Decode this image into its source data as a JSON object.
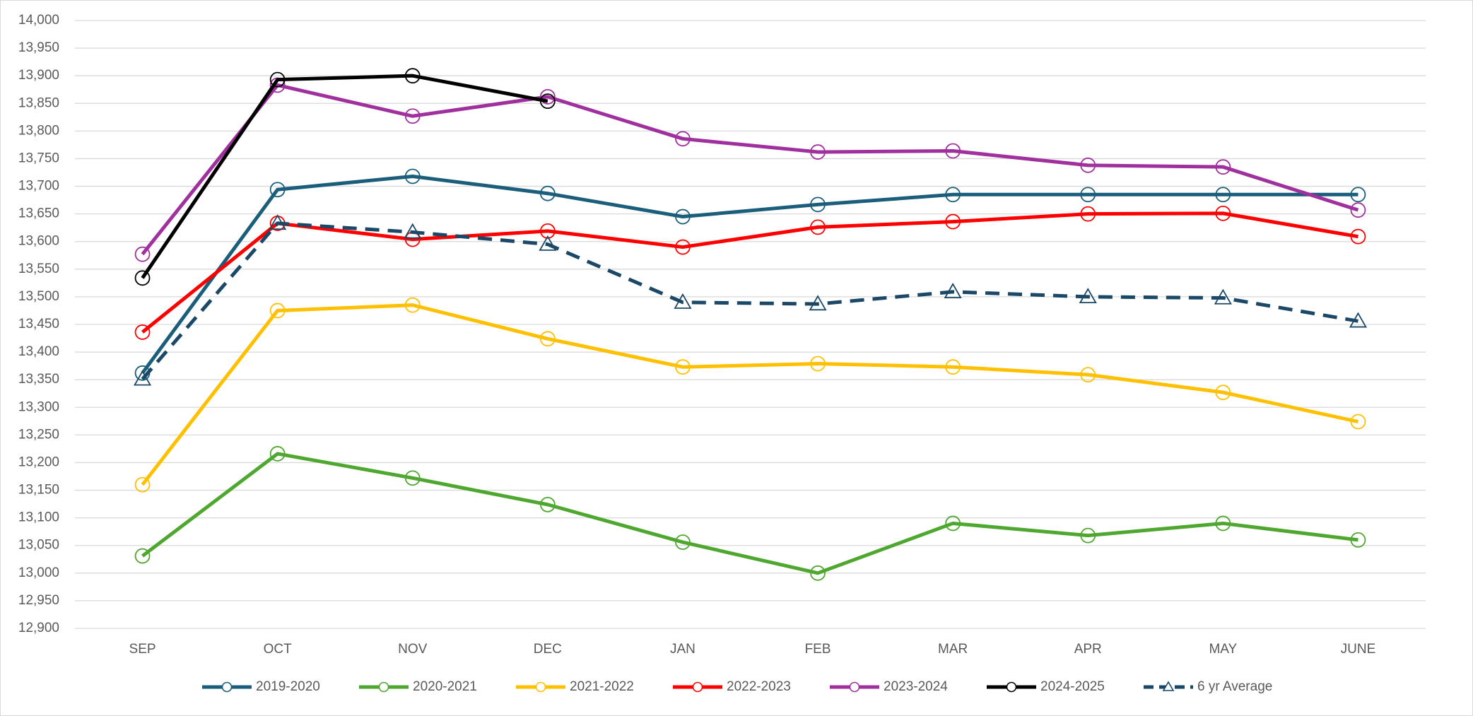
{
  "chart_data": {
    "type": "line",
    "categories": [
      "SEP",
      "OCT",
      "NOV",
      "DEC",
      "JAN",
      "FEB",
      "MAR",
      "APR",
      "MAY",
      "JUNE"
    ],
    "ylim": [
      12900,
      14000
    ],
    "yticks": [
      {
        "value": 12900,
        "label": "12,900"
      },
      {
        "value": 12950,
        "label": "12,950"
      },
      {
        "value": 13000,
        "label": "13,000"
      },
      {
        "value": 13050,
        "label": "13,050"
      },
      {
        "value": 13100,
        "label": "13,100"
      },
      {
        "value": 13150,
        "label": "13,150"
      },
      {
        "value": 13200,
        "label": "13,200"
      },
      {
        "value": 13250,
        "label": "13,250"
      },
      {
        "value": 13300,
        "label": "13,300"
      },
      {
        "value": 13350,
        "label": "13,350"
      },
      {
        "value": 13400,
        "label": "13,400"
      },
      {
        "value": 13450,
        "label": "13,450"
      },
      {
        "value": 13500,
        "label": "13,500"
      },
      {
        "value": 13550,
        "label": "13,550"
      },
      {
        "value": 13600,
        "label": "13,600"
      },
      {
        "value": 13650,
        "label": "13,650"
      },
      {
        "value": 13700,
        "label": "13,700"
      },
      {
        "value": 13750,
        "label": "13,750"
      },
      {
        "value": 13800,
        "label": "13,800"
      },
      {
        "value": 13850,
        "label": "13,850"
      },
      {
        "value": 13900,
        "label": "13,900"
      },
      {
        "value": 13950,
        "label": "13,950"
      },
      {
        "value": 14000,
        "label": "14,000"
      }
    ],
    "grid": true,
    "legend": "bottom",
    "series": [
      {
        "name": "2019-2020",
        "color": "#1b5e7b",
        "marker": "circle",
        "values": [
          13362,
          13694,
          13718,
          13687,
          13645,
          13667,
          13685,
          13685,
          13685,
          13685
        ]
      },
      {
        "name": "2020-2021",
        "color": "#4ea72e",
        "marker": "circle",
        "values": [
          13031,
          13216,
          13172,
          13124,
          13056,
          13000,
          13090,
          13068,
          13090,
          13060
        ]
      },
      {
        "name": "2021-2022",
        "color": "#ffc000",
        "marker": "circle",
        "values": [
          13160,
          13475,
          13485,
          13424,
          13373,
          13379,
          13373,
          13359,
          13327,
          13274
        ]
      },
      {
        "name": "2022-2023",
        "color": "#ff0000",
        "marker": "circle",
        "values": [
          13436,
          13633,
          13604,
          13619,
          13590,
          13626,
          13636,
          13650,
          13651,
          13609
        ]
      },
      {
        "name": "2023-2024",
        "color": "#a0309e",
        "marker": "circle",
        "values": [
          13577,
          13883,
          13827,
          13862,
          13786,
          13762,
          13764,
          13738,
          13735,
          13657
        ]
      },
      {
        "name": "2024-2025",
        "color": "#000000",
        "marker": "circle",
        "values": [
          13534,
          13893,
          13900,
          13854,
          null,
          null,
          null,
          null,
          null,
          null
        ]
      },
      {
        "name": "6 yr Average",
        "color": "#1a4866",
        "marker": "triangle",
        "dashed": true,
        "values": [
          13351,
          13633,
          13617,
          13595,
          13490,
          13487,
          13509,
          13500,
          13498,
          13456
        ]
      }
    ]
  }
}
